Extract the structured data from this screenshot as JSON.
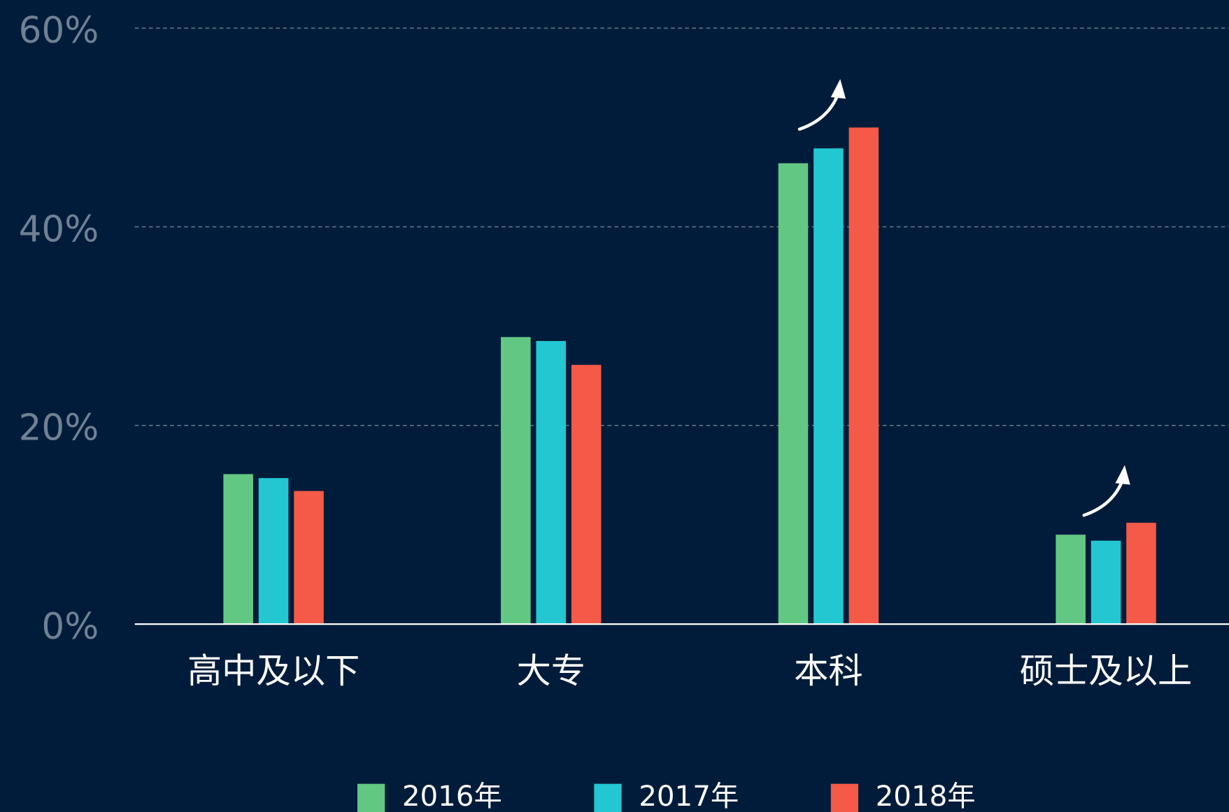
{
  "chart_data": {
    "type": "bar",
    "categories": [
      "高中及以下",
      "大专",
      "本科",
      "硕士及以上"
    ],
    "series": [
      {
        "name": "2016年",
        "color": "#63c784",
        "values": [
          15.1,
          28.9,
          46.4,
          9.0
        ]
      },
      {
        "name": "2017年",
        "color": "#22c7d2",
        "values": [
          14.7,
          28.5,
          47.9,
          8.4
        ]
      },
      {
        "name": "2018年",
        "color": "#f45a47",
        "values": [
          13.4,
          26.1,
          50.0,
          10.2
        ]
      }
    ],
    "ylim": [
      0,
      60
    ],
    "yticks": [
      {
        "value": 0,
        "label": "0%"
      },
      {
        "value": 20,
        "label": "20%"
      },
      {
        "value": 40,
        "label": "40%"
      },
      {
        "value": 60,
        "label": "60%"
      }
    ],
    "grid": true,
    "legend": "bottom"
  }
}
